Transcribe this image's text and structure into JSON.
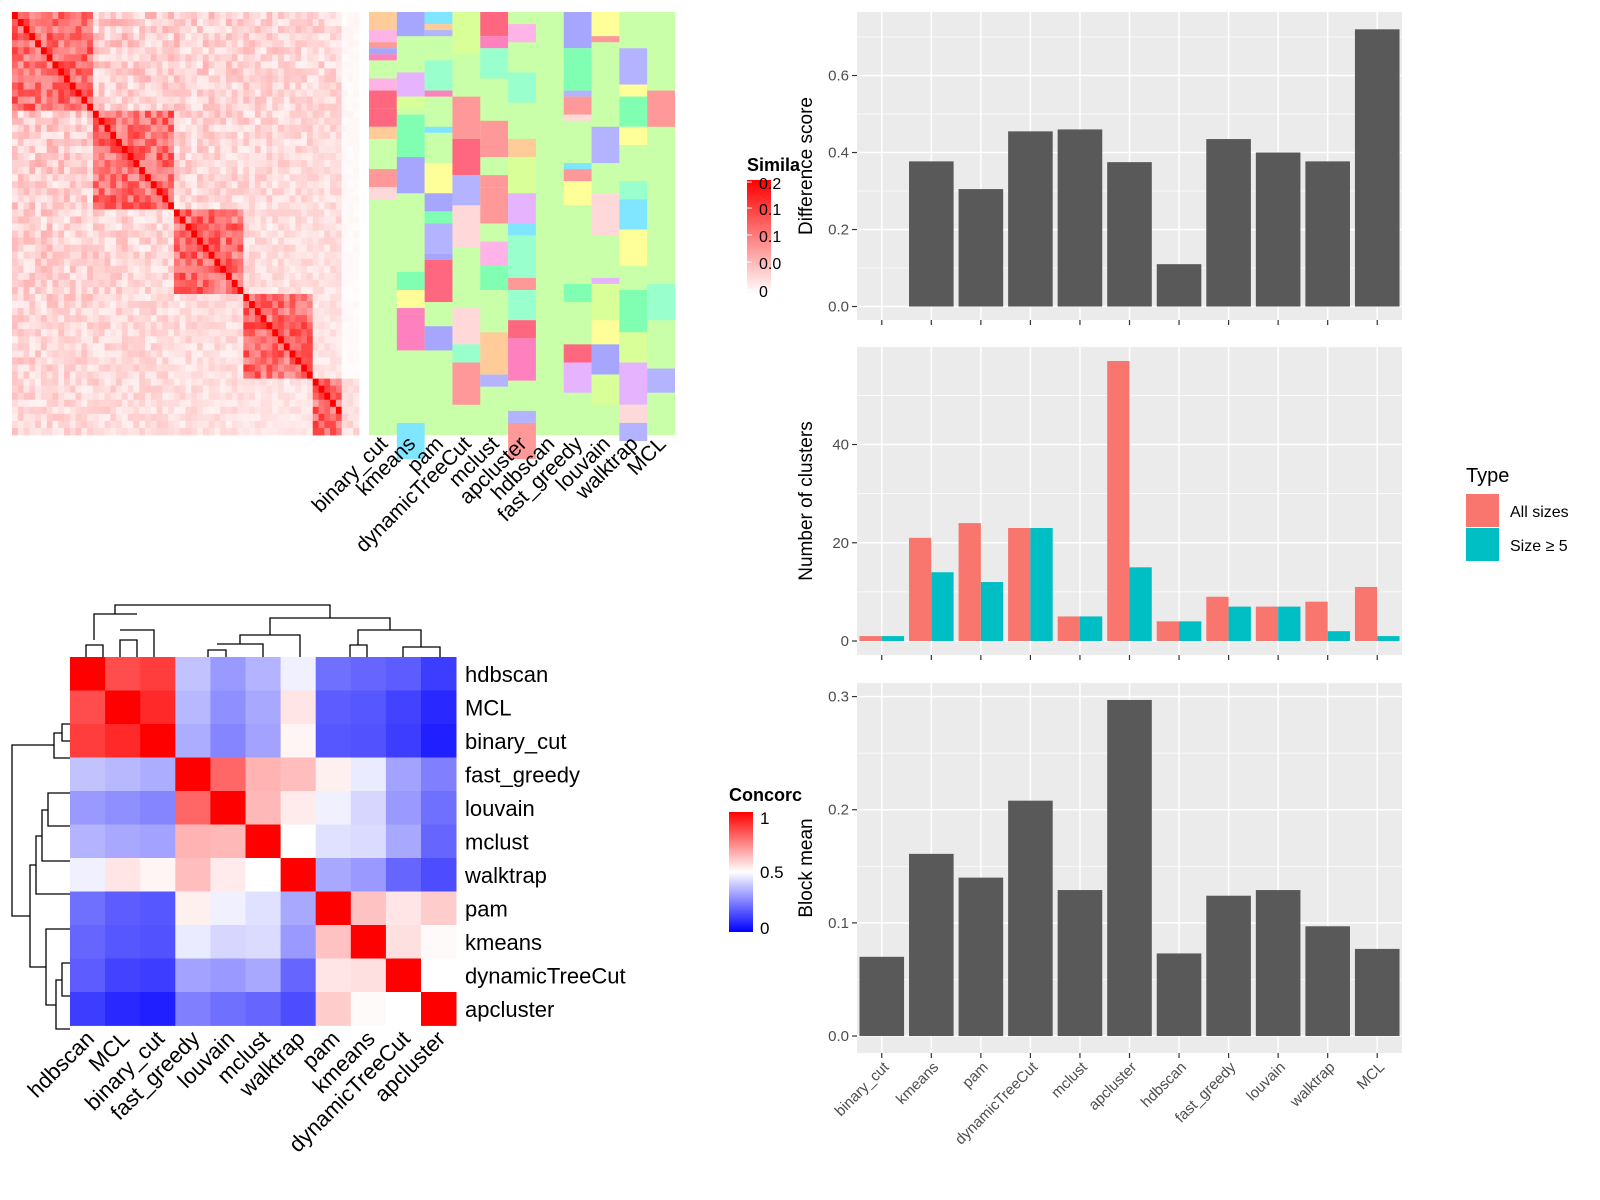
{
  "colors": {
    "panel_bg": "#ebebeb",
    "bar": "#595959",
    "all_sizes": "#f8766d",
    "size_ge_5": "#00bfc4",
    "heat_high": "#ff0000",
    "heat_low": "#ffffff",
    "conc_low": "#0000ff",
    "conc_mid": "#ffffff",
    "conc_high": "#ff0000"
  },
  "similarity_heatmap": {
    "legend_title": "Simila",
    "legend_ticks": [
      "0.2",
      "0.1",
      "0.1",
      "0.0",
      "0"
    ]
  },
  "cluster_columns": {
    "labels": [
      "binary_cut",
      "kmeans",
      "pam",
      "dynamicTreeCut",
      "mclust",
      "apcluster",
      "hdbscan",
      "fast_greedy",
      "louvain",
      "walktrap",
      "MCL"
    ]
  },
  "chart_data": [
    {
      "type": "heatmap",
      "name": "concordance",
      "legend_title": "Concorc",
      "legend_ticks": [
        "1",
        "0.5",
        "0"
      ],
      "rows": [
        "hdbscan",
        "MCL",
        "binary_cut",
        "fast_greedy",
        "louvain",
        "mclust",
        "walktrap",
        "pam",
        "kmeans",
        "dynamicTreeCut",
        "apcluster"
      ],
      "cols": [
        "hdbscan",
        "MCL",
        "binary_cut",
        "fast_greedy",
        "louvain",
        "mclust",
        "walktrap",
        "pam",
        "kmeans",
        "dynamicTreeCut",
        "apcluster"
      ],
      "values": [
        [
          1.0,
          0.85,
          0.88,
          0.38,
          0.3,
          0.35,
          0.47,
          0.22,
          0.2,
          0.18,
          0.12
        ],
        [
          0.85,
          1.0,
          0.92,
          0.36,
          0.28,
          0.33,
          0.55,
          0.18,
          0.17,
          0.13,
          0.08
        ],
        [
          0.88,
          0.92,
          1.0,
          0.34,
          0.26,
          0.32,
          0.52,
          0.17,
          0.16,
          0.12,
          0.06
        ],
        [
          0.38,
          0.36,
          0.34,
          1.0,
          0.8,
          0.65,
          0.63,
          0.53,
          0.46,
          0.32,
          0.25
        ],
        [
          0.3,
          0.28,
          0.26,
          0.8,
          1.0,
          0.64,
          0.54,
          0.47,
          0.42,
          0.3,
          0.22
        ],
        [
          0.35,
          0.33,
          0.32,
          0.65,
          0.64,
          1.0,
          0.5,
          0.44,
          0.43,
          0.33,
          0.2
        ],
        [
          0.47,
          0.55,
          0.52,
          0.63,
          0.54,
          0.5,
          1.0,
          0.33,
          0.3,
          0.2,
          0.15
        ],
        [
          0.22,
          0.18,
          0.17,
          0.53,
          0.47,
          0.44,
          0.33,
          1.0,
          0.62,
          0.55,
          0.6
        ],
        [
          0.2,
          0.17,
          0.16,
          0.46,
          0.42,
          0.43,
          0.3,
          0.62,
          1.0,
          0.56,
          0.51
        ],
        [
          0.18,
          0.13,
          0.12,
          0.32,
          0.3,
          0.33,
          0.2,
          0.55,
          0.56,
          1.0,
          0.5
        ],
        [
          0.12,
          0.08,
          0.06,
          0.25,
          0.22,
          0.2,
          0.15,
          0.6,
          0.51,
          0.5,
          1.0
        ]
      ]
    },
    {
      "type": "bar",
      "name": "difference_score",
      "categories": [
        "binary_cut",
        "kmeans",
        "pam",
        "dynamicTreeCut",
        "mclust",
        "apcluster",
        "hdbscan",
        "fast_greedy",
        "louvain",
        "walktrap",
        "MCL"
      ],
      "values": [
        0.0,
        0.377,
        0.305,
        0.455,
        0.46,
        0.375,
        0.11,
        0.435,
        0.4,
        0.377,
        0.72
      ],
      "ylabel": "Difference score",
      "ylim": [
        -0.035,
        0.765
      ],
      "yticks": [
        "0.0",
        "0.2",
        "0.4",
        "0.6"
      ],
      "grid": true
    },
    {
      "type": "bar",
      "name": "number_of_clusters",
      "categories": [
        "binary_cut",
        "kmeans",
        "pam",
        "dynamicTreeCut",
        "mclust",
        "apcluster",
        "hdbscan",
        "fast_greedy",
        "louvain",
        "walktrap",
        "MCL"
      ],
      "series": [
        {
          "name": "All sizes",
          "values": [
            1,
            21,
            24,
            23,
            5,
            57,
            4,
            9,
            7,
            8,
            11
          ]
        },
        {
          "name": "Size ≥ 5",
          "values": [
            1,
            14,
            12,
            23,
            5,
            15,
            4,
            7,
            7,
            2,
            1
          ]
        }
      ],
      "ylabel": "Number of clusters",
      "ylim": [
        -2.85,
        59.85
      ],
      "yticks": [
        "0",
        "20",
        "40"
      ],
      "legend": {
        "title": "Type",
        "position": "right"
      },
      "grid": true
    },
    {
      "type": "bar",
      "name": "block_mean",
      "categories": [
        "binary_cut",
        "kmeans",
        "pam",
        "dynamicTreeCut",
        "mclust",
        "apcluster",
        "hdbscan",
        "fast_greedy",
        "louvain",
        "walktrap",
        "MCL"
      ],
      "values": [
        0.07,
        0.161,
        0.14,
        0.208,
        0.129,
        0.297,
        0.073,
        0.124,
        0.129,
        0.097,
        0.077
      ],
      "ylabel": "Block mean",
      "ylim": [
        -0.015,
        0.312
      ],
      "yticks": [
        "0.0",
        "0.1",
        "0.2",
        "0.3"
      ],
      "grid": true
    }
  ]
}
